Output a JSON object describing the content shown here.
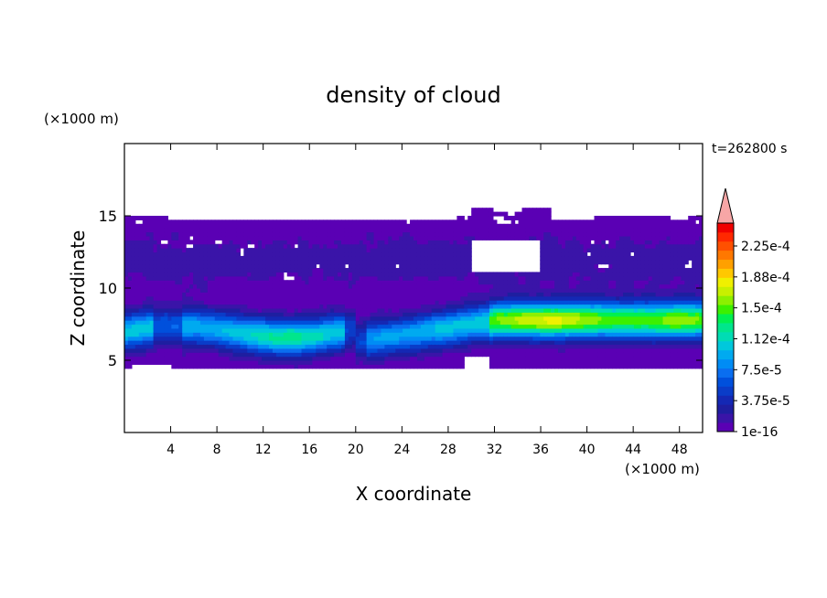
{
  "chart_data": {
    "type": "heatmap",
    "title": "density of cloud",
    "xlabel": "X coordinate",
    "ylabel": "Z coordinate",
    "x_unit": "(×1000 m)",
    "y_unit": "(×1000 m)",
    "time_label": "t=262800 s",
    "xlim": [
      0,
      50
    ],
    "ylim": [
      0,
      20
    ],
    "x_ticks": [
      4,
      8,
      12,
      16,
      20,
      24,
      28,
      32,
      36,
      40,
      44,
      48
    ],
    "y_ticks": [
      5,
      10,
      15
    ],
    "colorbar": {
      "labels": [
        "2.25e-4",
        "1.88e-4",
        "1.5e-4",
        "1.12e-4",
        "7.5e-5",
        "3.75e-5",
        "1e-16"
      ],
      "extend": "max",
      "colors": [
        "#5a00b4",
        "#3a14a8",
        "#1e1ea0",
        "#1428b4",
        "#0a3cc8",
        "#0050dc",
        "#0a6ef0",
        "#008cf5",
        "#00aaf0",
        "#00c8dc",
        "#00dcb4",
        "#00e68c",
        "#00f050",
        "#3cf000",
        "#8cf000",
        "#c8f000",
        "#f0f000",
        "#ffc800",
        "#ffa000",
        "#ff7800",
        "#ff5000",
        "#ff2800",
        "#f00000"
      ],
      "over_color": "#f7a6a6"
    },
    "cloud_layer": {
      "base_km": 4.5,
      "top_km": 15.0,
      "peak_density": "1.88e-4",
      "peak_region_x_km": [
        33,
        48
      ],
      "peak_height_km": 7.8
    }
  }
}
